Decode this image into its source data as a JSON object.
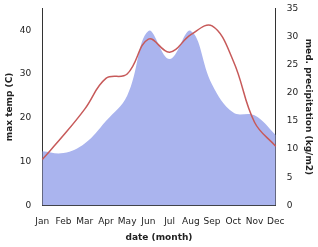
{
  "chart_data": {
    "type": "line",
    "x_label": "date (month)",
    "y_label": "max temp (C)",
    "y2_label": "med. precipitation (kg/m2)",
    "categories": [
      "Jan",
      "Feb",
      "Mar",
      "Apr",
      "May",
      "Jun",
      "Jul",
      "Aug",
      "Sep",
      "Oct",
      "Nov",
      "Dec"
    ],
    "series": [
      {
        "name": "max temp (C)",
        "type": "line",
        "color": "#c75a5a",
        "values": [
          10.5,
          16,
          22,
          29,
          30,
          38,
          35,
          39,
          41,
          33,
          19,
          13.5
        ]
      },
      {
        "name": "med. precipitation (kg/m2)",
        "type": "area",
        "color": "#aab4ee",
        "axis": "y2",
        "values": [
          9.6,
          9.3,
          11,
          15,
          19.5,
          31,
          26,
          31,
          21.5,
          16.5,
          16,
          12.5
        ]
      }
    ],
    "ylim": [
      0,
      45
    ],
    "yticks": [
      0,
      10,
      20,
      30,
      40
    ],
    "y2lim": [
      0,
      35
    ],
    "y2ticks": [
      0,
      5,
      10,
      15,
      20,
      25,
      30,
      35
    ],
    "grid": false
  }
}
